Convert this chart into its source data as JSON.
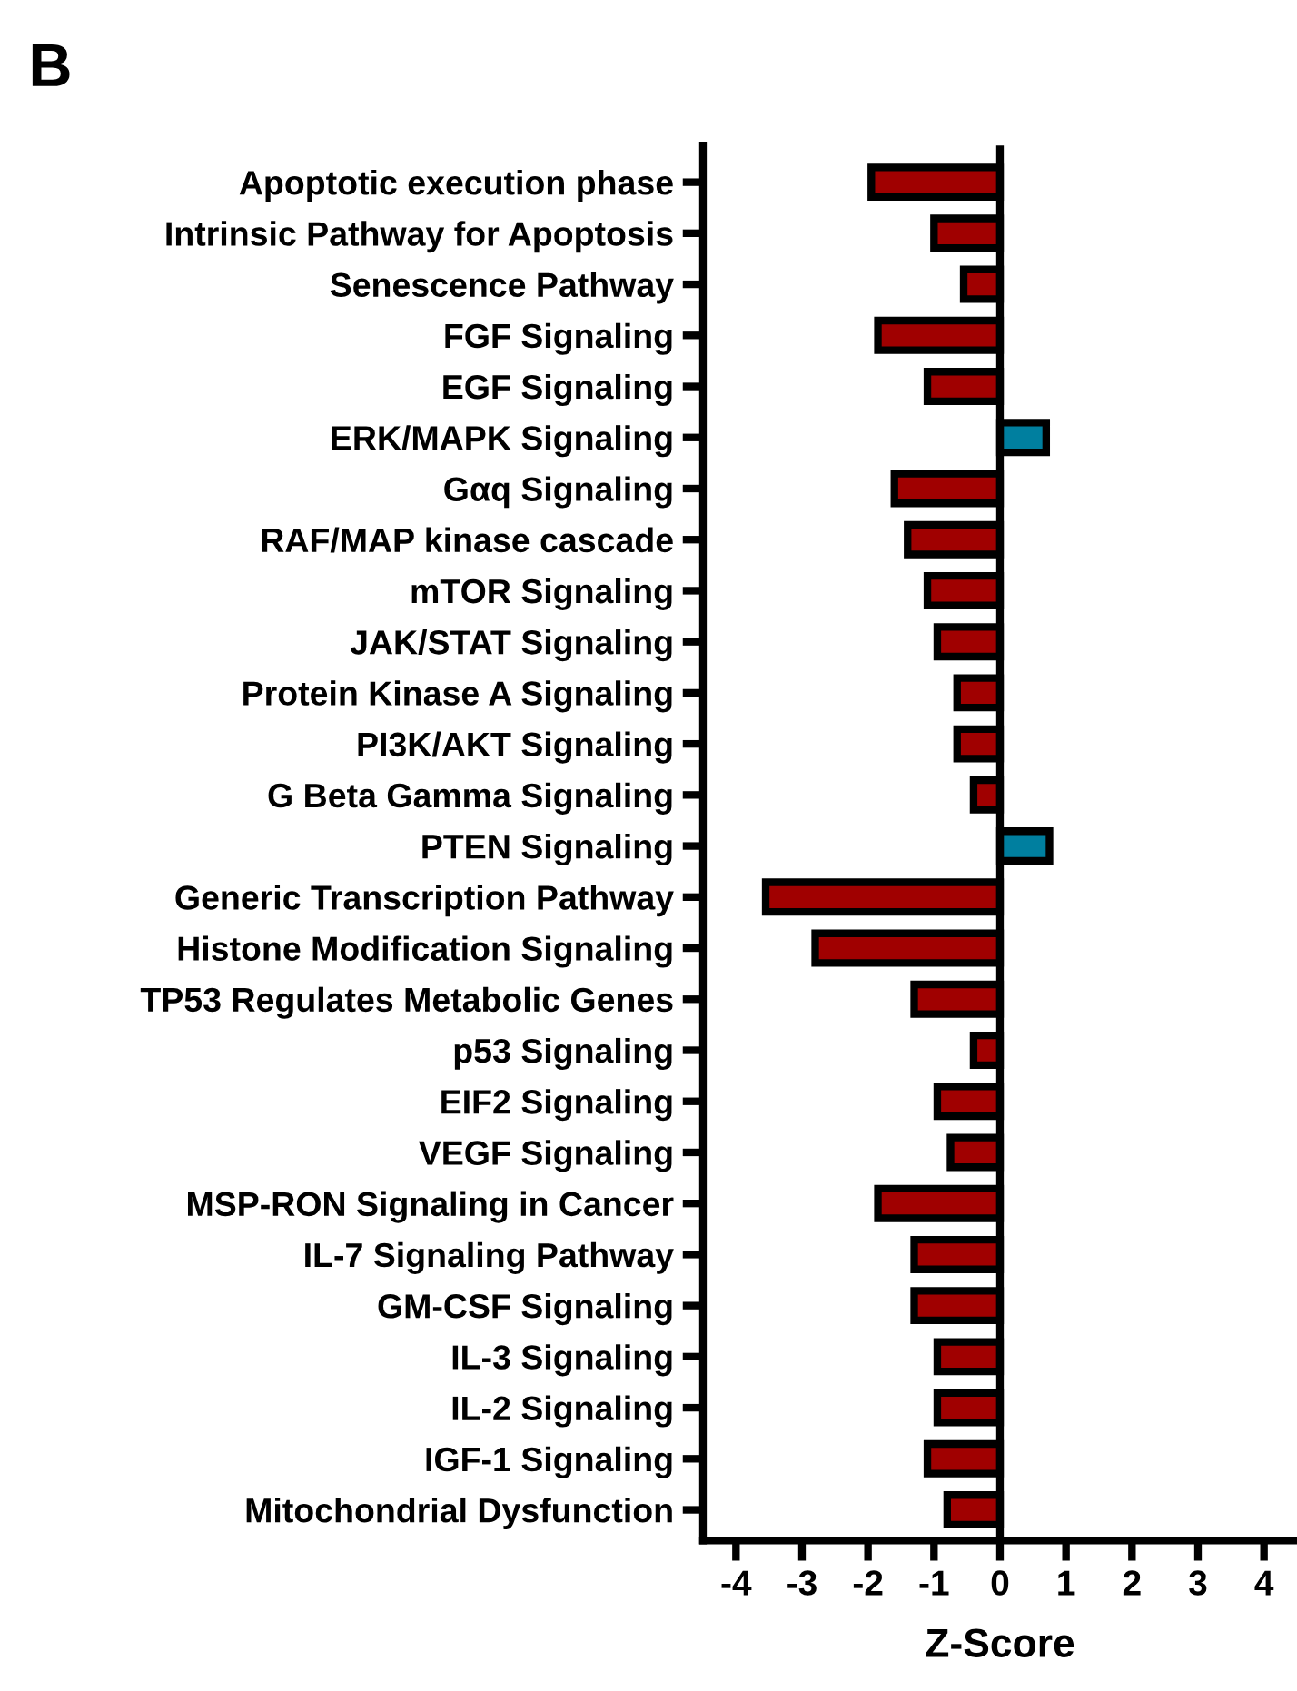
{
  "chart_data": {
    "type": "bar",
    "orientation": "horizontal",
    "categories": [
      "Apoptotic execution phase",
      "Intrinsic Pathway for Apoptosis",
      "Senescence Pathway",
      "FGF Signaling",
      "EGF Signaling",
      "ERK/MAPK Signaling",
      "Gαq Signaling",
      "RAF/MAP kinase cascade",
      "mTOR Signaling",
      "JAK/STAT Signaling",
      "Protein Kinase A Signaling",
      "PI3K/AKT Signaling",
      "G Beta Gamma Signaling",
      "PTEN Signaling",
      "Generic Transcription Pathway",
      "Histone Modification Signaling",
      "TP53 Regulates Metabolic Genes",
      "p53 Signaling",
      "EIF2 Signaling",
      "VEGF Signaling",
      "MSP-RON Signaling in Cancer",
      "IL-7 Signaling Pathway",
      "GM-CSF Signaling",
      "IL-3 Signaling",
      "IL-2 Signaling",
      "IGF-1 Signaling",
      "Mitochondrial Dysfunction"
    ],
    "values": [
      -1.95,
      -1.0,
      -0.55,
      -1.85,
      -1.1,
      0.7,
      -1.6,
      -1.4,
      -1.1,
      -0.95,
      -0.65,
      -0.65,
      -0.4,
      0.75,
      -3.55,
      -2.8,
      -1.3,
      -0.4,
      -0.95,
      -0.75,
      -1.85,
      -1.3,
      -1.3,
      -0.95,
      -0.95,
      -1.1,
      -0.8
    ],
    "colors": [
      "#a00000",
      "#a00000",
      "#a00000",
      "#a00000",
      "#a00000",
      "#007f9f",
      "#a00000",
      "#a00000",
      "#a00000",
      "#a00000",
      "#a00000",
      "#a00000",
      "#a00000",
      "#007f9f",
      "#a00000",
      "#a00000",
      "#a00000",
      "#a00000",
      "#a00000",
      "#a00000",
      "#a00000",
      "#a00000",
      "#a00000",
      "#a00000",
      "#a00000",
      "#a00000",
      "#a00000"
    ],
    "xlabel": "Z-Score",
    "xlim": [
      -4.5,
      4.5
    ],
    "xticks": [
      -4,
      -3,
      -2,
      -1,
      0,
      1,
      2,
      3,
      4
    ],
    "ref_lines": [
      {
        "axis": "x",
        "value": 0,
        "color": "#000000"
      }
    ],
    "annotations": [
      "B"
    ],
    "grid": false,
    "legend": false
  }
}
